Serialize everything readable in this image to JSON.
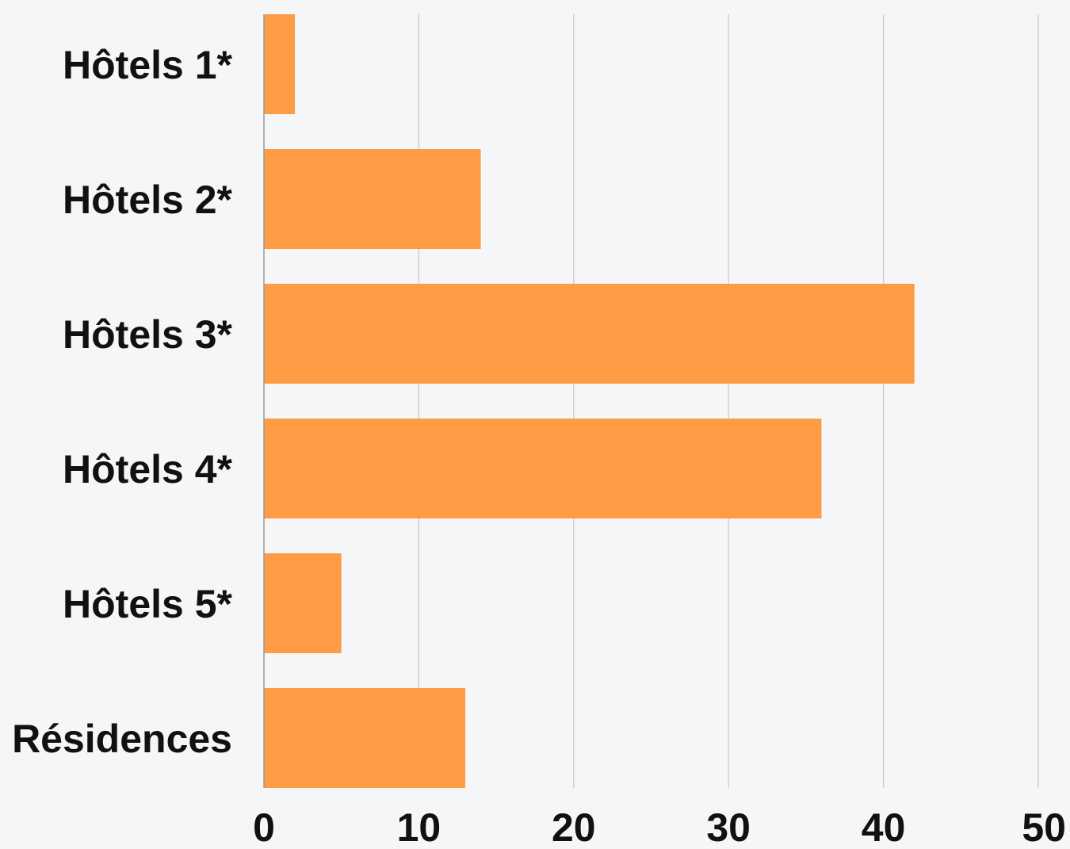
{
  "chart_data": {
    "type": "bar",
    "orientation": "horizontal",
    "categories": [
      "Hôtels 1*",
      "Hôtels 2*",
      "Hôtels 3*",
      "Hôtels 4*",
      "Hôtels 5*",
      "Résidences"
    ],
    "values": [
      2,
      14,
      42,
      36,
      5,
      13
    ],
    "xlim": [
      0,
      50
    ],
    "x_ticks": [
      "0",
      "10",
      "20",
      "30",
      "40",
      "50"
    ],
    "title": "",
    "xlabel": "",
    "ylabel": "",
    "grid": "vertical",
    "legend": "none",
    "colors": {
      "bar": "#ff9a45",
      "grid": "#c8c8c8",
      "axis": "#9a9a9a",
      "text": "#111111",
      "background": "#f4f6f7"
    }
  }
}
